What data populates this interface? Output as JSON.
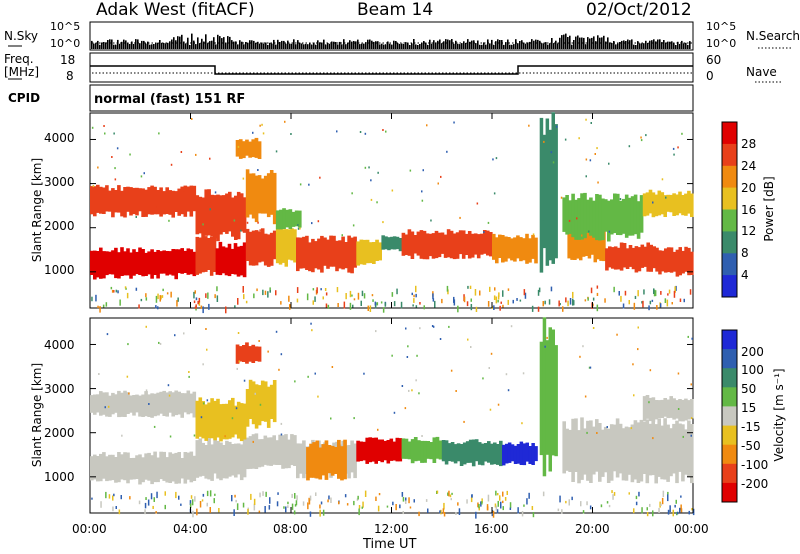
{
  "header": {
    "title": "Adak West (fitACF)",
    "beam": "Beam 14",
    "date": "02/Oct/2012"
  },
  "status_panel": {
    "left_label": "N.Sky",
    "right_label": "N.Search",
    "tick_top": "10^5",
    "tick_bottom": "10^0"
  },
  "freq_panel": {
    "label_line1": "Freq.",
    "label_line2": "[MHz]",
    "right_label": "Nave",
    "left_ticks": [
      "18",
      "8"
    ],
    "right_ticks": [
      "60",
      "0"
    ]
  },
  "cpid": {
    "label": "CPID",
    "value": "normal (fast) 151 RF"
  },
  "chart_data": [
    {
      "type": "heatmap",
      "name": "power",
      "xlabel": "",
      "ylabel": "Slant Range [km]",
      "xlim": [
        0,
        24
      ],
      "ylim": [
        180,
        4600
      ],
      "ytick_labels": [
        "1000",
        "2000",
        "3000",
        "4000"
      ],
      "colorbar": {
        "label": "Power [dB]",
        "range": [
          0,
          32
        ],
        "tick_labels": [
          "4",
          "8",
          "12",
          "16",
          "20",
          "24",
          "28"
        ],
        "colors": [
          "#1f29d6",
          "#2f5fb0",
          "#3a8a6a",
          "#63b845",
          "#e8c020",
          "#f08a10",
          "#e8401a",
          "#e00000"
        ]
      },
      "bands": [
        {
          "t0": 0.0,
          "t1": 4.2,
          "r0": 900,
          "r1": 1500,
          "v": 28
        },
        {
          "t0": 4.2,
          "t1": 5.0,
          "r0": 1000,
          "r1": 1800,
          "v": 26
        },
        {
          "t0": 5.0,
          "t1": 6.2,
          "r0": 950,
          "r1": 1600,
          "v": 28
        },
        {
          "t0": 6.2,
          "t1": 7.4,
          "r0": 1200,
          "r1": 1900,
          "v": 24
        },
        {
          "t0": 7.4,
          "t1": 8.2,
          "r0": 1200,
          "r1": 2000,
          "v": 18
        },
        {
          "t0": 8.2,
          "t1": 10.6,
          "r0": 1050,
          "r1": 1750,
          "v": 24
        },
        {
          "t0": 10.6,
          "t1": 11.6,
          "r0": 1200,
          "r1": 1700,
          "v": 18
        },
        {
          "t0": 11.6,
          "t1": 12.4,
          "r0": 1500,
          "r1": 1800,
          "v": 10
        },
        {
          "t0": 12.4,
          "t1": 16.0,
          "r0": 1350,
          "r1": 1900,
          "v": 24
        },
        {
          "t0": 16.0,
          "t1": 17.8,
          "r0": 1250,
          "r1": 1800,
          "v": 20
        },
        {
          "t0": 19.0,
          "t1": 20.5,
          "r0": 1300,
          "r1": 2000,
          "v": 22
        },
        {
          "t0": 20.5,
          "t1": 22.5,
          "r0": 1050,
          "r1": 1600,
          "v": 24
        },
        {
          "t0": 22.5,
          "t1": 24.0,
          "r0": 950,
          "r1": 1500,
          "v": 26
        },
        {
          "t0": 0.0,
          "t1": 4.2,
          "r0": 2300,
          "r1": 2900,
          "v": 26
        },
        {
          "t0": 4.2,
          "t1": 6.2,
          "r0": 1800,
          "r1": 2800,
          "v": 24
        },
        {
          "t0": 6.2,
          "t1": 7.4,
          "r0": 2200,
          "r1": 3200,
          "v": 20
        },
        {
          "t0": 7.4,
          "t1": 8.4,
          "r0": 2000,
          "r1": 2400,
          "v": 12
        },
        {
          "t0": 18.8,
          "t1": 22.0,
          "r0": 1800,
          "r1": 2700,
          "v": 12
        },
        {
          "t0": 22.0,
          "t1": 24.0,
          "r0": 2300,
          "r1": 2800,
          "v": 18
        },
        {
          "t0": 5.8,
          "t1": 6.8,
          "r0": 3600,
          "r1": 4000,
          "v": 22
        },
        {
          "t0": 17.9,
          "t1": 18.6,
          "r0": 1200,
          "r1": 4300,
          "v": 10
        }
      ]
    },
    {
      "type": "heatmap",
      "name": "velocity",
      "xlabel": "Time UT",
      "ylabel": "Slant Range [km]",
      "xlim": [
        0,
        24
      ],
      "ylim": [
        180,
        4600
      ],
      "xtick_labels": [
        "00:00",
        "04:00",
        "08:00",
        "12:00",
        "16:00",
        "20:00",
        "00:00"
      ],
      "ytick_labels": [
        "1000",
        "2000",
        "3000",
        "4000"
      ],
      "colorbar": {
        "label": "Velocity [m s⁻¹]",
        "tick_labels": [
          "200",
          "100",
          "50",
          "15",
          "-15",
          "-50",
          "-100",
          "-200"
        ],
        "colors": [
          "#1f29d6",
          "#2f5fb0",
          "#3a8a6a",
          "#63b845",
          "#c8c8c0",
          "#e8c020",
          "#f08a10",
          "#e8401a",
          "#e00000"
        ]
      },
      "bands": [
        {
          "t0": 0.0,
          "t1": 4.2,
          "r0": 900,
          "r1": 1500,
          "c": 4
        },
        {
          "t0": 4.2,
          "t1": 6.2,
          "r0": 1000,
          "r1": 1800,
          "c": 4
        },
        {
          "t0": 6.2,
          "t1": 8.2,
          "r0": 1200,
          "r1": 1900,
          "c": 4
        },
        {
          "t0": 0.0,
          "t1": 4.2,
          "r0": 2400,
          "r1": 2900,
          "c": 4
        },
        {
          "t0": 4.2,
          "t1": 6.2,
          "r0": 1900,
          "r1": 2700,
          "c": 5
        },
        {
          "t0": 6.2,
          "t1": 7.4,
          "r0": 2200,
          "r1": 3100,
          "c": 5
        },
        {
          "t0": 8.2,
          "t1": 10.6,
          "r0": 1050,
          "r1": 1750,
          "c": 4
        },
        {
          "t0": 8.6,
          "t1": 10.2,
          "r0": 1000,
          "r1": 1750,
          "c": 6
        },
        {
          "t0": 10.6,
          "t1": 12.4,
          "r0": 1350,
          "r1": 1850,
          "c": 8
        },
        {
          "t0": 12.4,
          "t1": 14.0,
          "r0": 1350,
          "r1": 1850,
          "c": 3
        },
        {
          "t0": 14.0,
          "t1": 16.4,
          "r0": 1300,
          "r1": 1800,
          "c": 2
        },
        {
          "t0": 16.4,
          "t1": 17.8,
          "r0": 1300,
          "r1": 1750,
          "c": 0
        },
        {
          "t0": 18.8,
          "t1": 24.0,
          "r0": 1000,
          "r1": 2200,
          "c": 4
        },
        {
          "t0": 22.0,
          "t1": 24.0,
          "r0": 2300,
          "r1": 2800,
          "c": 4
        },
        {
          "t0": 5.8,
          "t1": 6.8,
          "r0": 3600,
          "r1": 4000,
          "c": 7
        },
        {
          "t0": 17.9,
          "t1": 18.6,
          "r0": 1200,
          "r1": 4300,
          "c": 3
        }
      ]
    }
  ]
}
